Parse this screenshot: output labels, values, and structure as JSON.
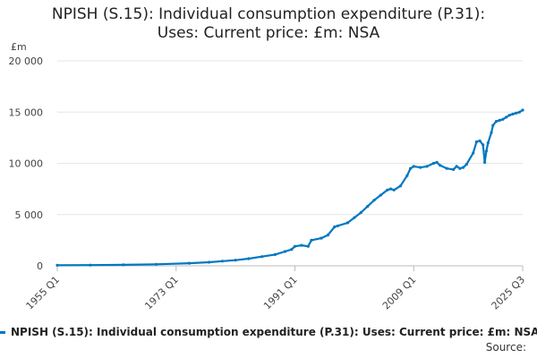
{
  "title_line1": "NPISH (S.15): Individual consumption expenditure (P.31):",
  "title_line2": "Uses: Current price: £m: NSA",
  "source_label": "Source:",
  "chart_data": {
    "type": "line",
    "title": "NPISH (S.15): Individual consumption expenditure (P.31): Uses: Current price: £m: NSA",
    "ylabel": "£m",
    "xlabel": "",
    "ylim": [
      0,
      20000
    ],
    "yticks": [
      0,
      5000,
      10000,
      15000,
      20000
    ],
    "ytick_labels": [
      "0",
      "5 000",
      "10 000",
      "15 000",
      "20 000"
    ],
    "xlim": [
      1955.0,
      2025.5
    ],
    "xticks": [
      1955.0,
      1973.0,
      1991.0,
      2009.0,
      2025.5
    ],
    "xtick_labels": [
      "1955 Q1",
      "1973 Q1",
      "1991 Q1",
      "2009 Q1",
      "2025 Q3"
    ],
    "grid": true,
    "color": "#0077c0",
    "legend_position": "bottom",
    "series": [
      {
        "name": "NPISH (S.15): Individual consumption expenditure (P.31): Uses: Current price: £m: NSA",
        "x": [
          1955.0,
          1960.0,
          1965.0,
          1970.0,
          1975.0,
          1978.0,
          1980.0,
          1982.0,
          1984.0,
          1986.0,
          1988.0,
          1989.5,
          1990.5,
          1991.0,
          1992.0,
          1993.0,
          1993.5,
          1995.0,
          1996.0,
          1997.0,
          1997.5,
          1999.0,
          2000.0,
          2001.0,
          2002.0,
          2003.0,
          2004.0,
          2005.0,
          2005.5,
          2006.0,
          2007.0,
          2008.0,
          2008.5,
          2009.0,
          2010.0,
          2011.0,
          2012.0,
          2012.5,
          2013.0,
          2014.0,
          2015.0,
          2015.5,
          2016.0,
          2016.5,
          2017.0,
          2018.0,
          2018.5,
          2019.0,
          2019.5,
          2019.75,
          2020.0,
          2020.25,
          2020.75,
          2021.0,
          2021.5,
          2022.0,
          2022.5,
          2023.0,
          2023.5,
          2024.0,
          2024.5,
          2025.0,
          2025.5
        ],
        "values": [
          50,
          70,
          100,
          150,
          250,
          350,
          450,
          550,
          700,
          900,
          1100,
          1400,
          1600,
          1900,
          2000,
          1900,
          2500,
          2700,
          3000,
          3800,
          3900,
          4200,
          4700,
          5200,
          5800,
          6400,
          6900,
          7400,
          7500,
          7400,
          7800,
          8800,
          9500,
          9700,
          9600,
          9700,
          10000,
          10100,
          9800,
          9500,
          9400,
          9700,
          9500,
          9600,
          9900,
          11000,
          12100,
          12200,
          11800,
          10100,
          11200,
          12000,
          13000,
          13700,
          14100,
          14200,
          14300,
          14500,
          14700,
          14800,
          14900,
          15000,
          15200
        ]
      }
    ]
  }
}
